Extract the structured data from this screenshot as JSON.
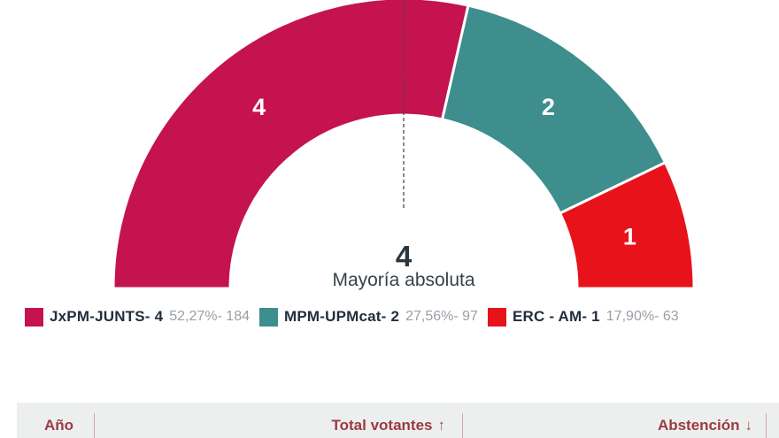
{
  "chart_data": {
    "type": "pie",
    "subtype": "semicircle-donut-seats",
    "total_seats": 7,
    "majority": {
      "value": "4",
      "label": "Mayoría absoluta"
    },
    "series": [
      {
        "name": "JxPM-JUNTS",
        "seats": 4,
        "percent": "52,27%",
        "votes": 184,
        "color": "#C4134F"
      },
      {
        "name": "MPM-UPMcat",
        "seats": 2,
        "percent": "27,56%",
        "votes": 97,
        "color": "#3E8E8E"
      },
      {
        "name": "ERC - AM",
        "seats": 1,
        "percent": "17,90%",
        "votes": 63,
        "color": "#E8121A"
      }
    ],
    "layout": {
      "arc_degrees": 180,
      "majority_line": "center-top-dashed",
      "legend_position": "bottom-left"
    }
  },
  "legend": {
    "items": [
      {
        "name": "JxPM-JUNTS- 4",
        "stat": "52,27%- 184",
        "color": "#C4134F"
      },
      {
        "name": "MPM-UPMcat- 2",
        "stat": "27,56%- 97",
        "color": "#3E8E8E"
      },
      {
        "name": "ERC - AM- 1",
        "stat": "17,90%- 63",
        "color": "#E8121A"
      }
    ]
  },
  "table": {
    "columns": [
      {
        "label": "Año",
        "sort_icon": ""
      },
      {
        "label": "Total votantes",
        "sort_icon": "↑"
      },
      {
        "label": "Abstención",
        "sort_icon": "↓"
      }
    ]
  },
  "colors": {
    "header_text": "#9B3A46",
    "header_bg": "#EDEFEE",
    "legend_name_text": "#232E3D",
    "legend_stat_text": "#99A0A6",
    "center_text": "#29363F"
  }
}
